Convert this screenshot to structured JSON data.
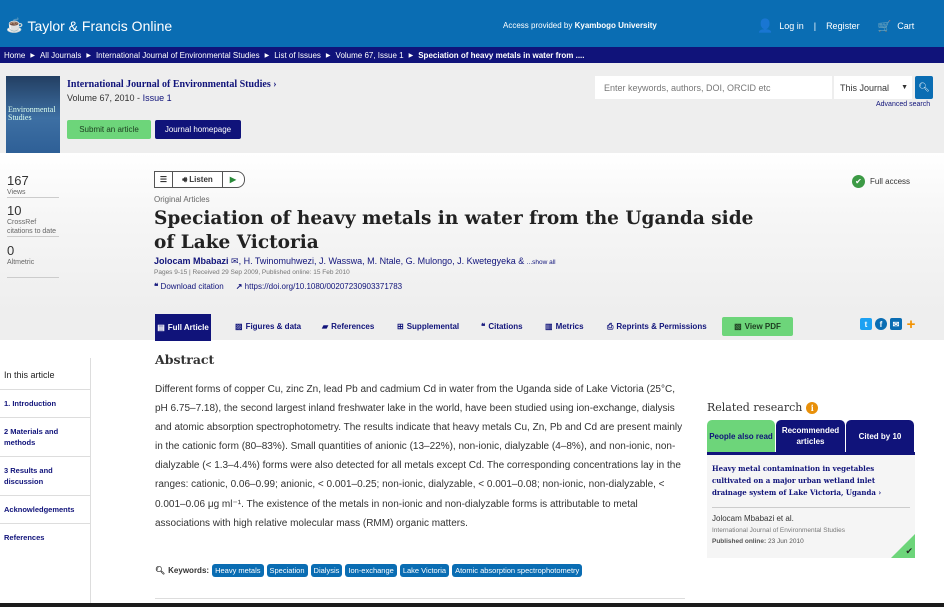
{
  "header": {
    "brand": "Taylor & Francis Online",
    "access_prefix": "Access provided by ",
    "access_org": "Kyambogo University",
    "login": "Log in",
    "register": "Register",
    "cart": "Cart"
  },
  "breadcrumb": [
    "Home",
    "All Journals",
    "International Journal of Environmental Studies",
    "List of Issues",
    "Volume 67, Issue 1",
    "Speciation of heavy metals in water from ...."
  ],
  "journal": {
    "cover_text": "Environmental Studies",
    "title": "International Journal of Environmental Studies ›",
    "volume": "Volume 67, 2010 - ",
    "issue": "Issue 1",
    "submit": "Submit an article",
    "homepage": "Journal homepage"
  },
  "search": {
    "placeholder": "Enter keywords, authors, DOI, ORCID etc",
    "scope": "This Journal",
    "advanced": "Advanced search"
  },
  "metrics": [
    {
      "value": "167",
      "label": "Views"
    },
    {
      "value": "10",
      "label": "CrossRef citations to date"
    },
    {
      "value": "0",
      "label": "Altmetric"
    }
  ],
  "article": {
    "listen": "Listen",
    "type": "Original Articles",
    "title": "Speciation of heavy metals in water from the Uganda side of Lake Victoria",
    "first_author": "Jolocam Mbabazi",
    "other_authors": ", H. Twinomuhwezi, J. Wasswa, M. Ntale, G. Mulongo, J. Kwetegyeka &",
    "show_all": "...show all",
    "dates": "Pages 9-15 | Received 29 Sep 2009, Published online: 15 Feb 2010",
    "download_citation": "Download citation",
    "doi": "https://doi.org/10.1080/00207230903371783",
    "access": "Full access"
  },
  "tabs": {
    "full": "Full Article",
    "figures": "Figures & data",
    "references": "References",
    "supplemental": "Supplemental",
    "citations": "Citations",
    "metrics": "Metrics",
    "reprints": "Reprints & Permissions",
    "pdf": "View PDF"
  },
  "toc": {
    "heading": "In this article",
    "items": [
      "1. Introduction",
      "2 Materials and methods",
      "3 Results and discussion",
      "Acknowledgements",
      "References"
    ]
  },
  "abstract": {
    "heading": "Abstract",
    "text": "Different forms of copper Cu, zinc Zn, lead Pb and cadmium Cd in water from the Uganda side of Lake Victoria (25°C, pH 6.75–7.18), the second largest inland freshwater lake in the world, have been studied using ion-exchange, dialysis and atomic absorption spectrophotometry. The results indicate that heavy metals Cu, Zn, Pb and Cd are present mainly in the cationic form (80–83%). Small quantities of anionic (13–22%), non-ionic, dialyzable (4–8%), and non-ionic, non-dialyzable (< 1.3–4.4%) forms were also detected for all metals except Cd. The corresponding concentrations lay in the ranges: cationic, 0.06–0.99; anionic, < 0.001–0.25; non-ionic, dialyzable, < 0.001–0.08; non-ionic, non-dialyzable, < 0.001–0.06 μg ml⁻¹. The existence of the metals in non-ionic and non-dialyzable forms is attributable to metal associations with high relative molecular mass (RMM) organic matters."
  },
  "keywords": {
    "label": "Keywords:",
    "items": [
      "Heavy metals",
      "Speciation",
      "Dialysis",
      "Ion-exchange",
      "Lake Victoria",
      "Atomic absorption spectrophotometry"
    ]
  },
  "related": {
    "heading": "Related research",
    "tabs": [
      "People also read",
      "Recommended articles",
      "Cited by 10"
    ],
    "card": {
      "title": "Heavy metal contamination in vegetables cultivated on a major urban wetland inlet drainage system of Lake Victoria, Uganda",
      "authors": "Jolocam Mbabazi et al.",
      "journal": "International Journal of Environmental Studies",
      "published_label": "Published online:",
      "published": "23 Jun 2010"
    }
  },
  "colors": {
    "brand_blue": "#0a6db3",
    "navy": "#10137a",
    "green": "#6dd57a"
  }
}
